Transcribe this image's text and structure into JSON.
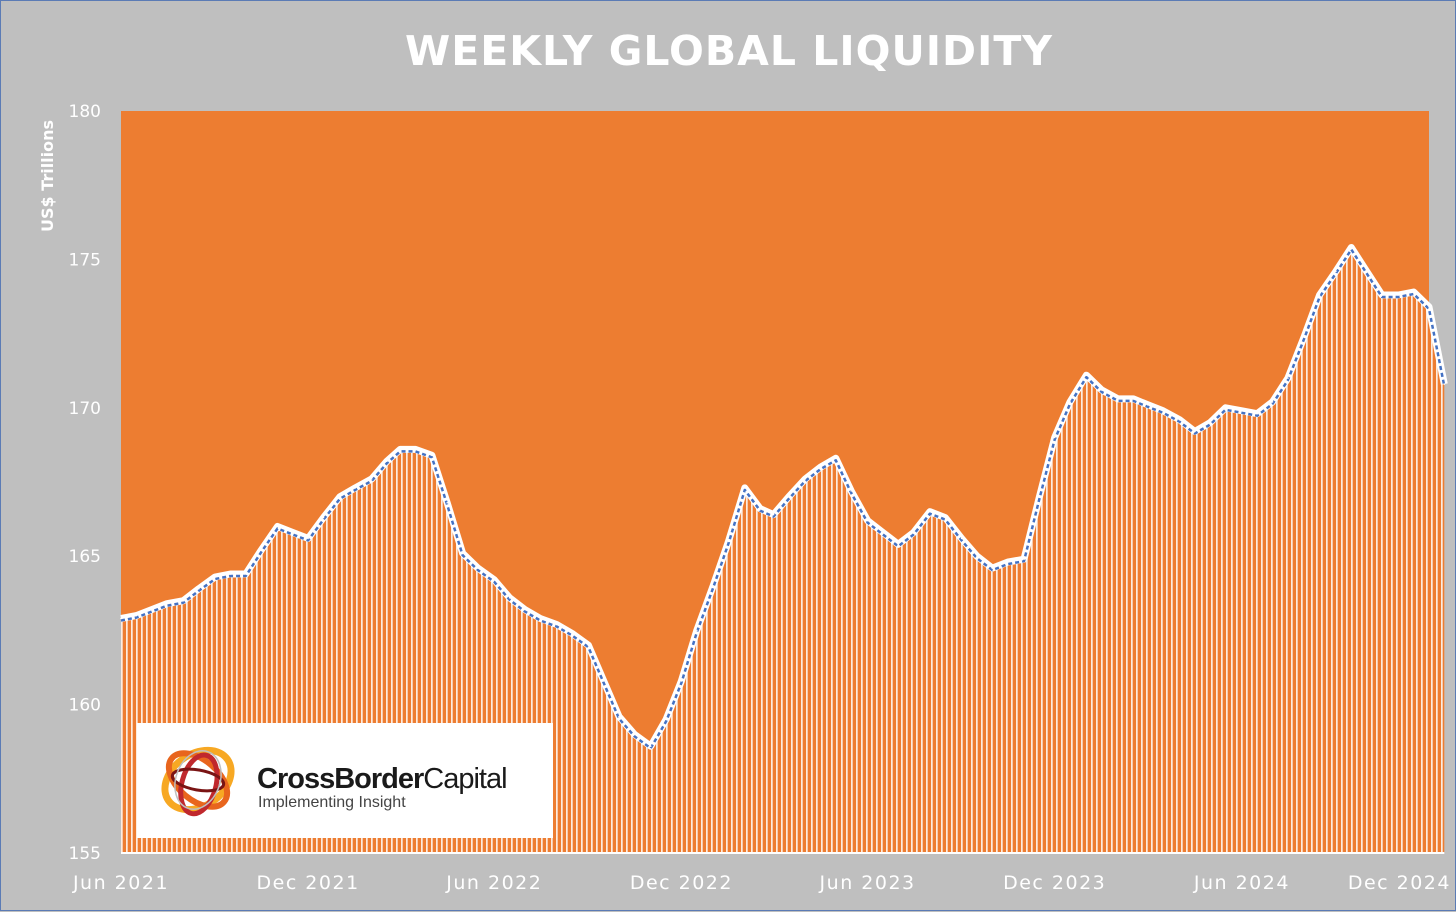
{
  "colors": {
    "background": "#bfbfbf",
    "plot_fill": "#ed7d31",
    "line_white": "#ffffff",
    "line_blue": "#4472c4",
    "text": "#ffffff"
  },
  "logo": {
    "name_bold": "CrossBorder",
    "name_regular": "Capital",
    "tagline": "Implementing Insight"
  },
  "chart_data": {
    "type": "area",
    "title": "WEEKLY GLOBAL LIQUIDITY",
    "ylabel": "US$ Trillions",
    "xlabel": "",
    "ylim": [
      155,
      180
    ],
    "yticks": [
      "155",
      "160",
      "165",
      "170",
      "175",
      "180"
    ],
    "xlim": [
      "2021-06",
      "2024-12"
    ],
    "xticks": [
      {
        "label": "Jun 2021",
        "value": "2021-06"
      },
      {
        "label": "Dec 2021",
        "value": "2021-12"
      },
      {
        "label": "Jun 2022",
        "value": "2022-06"
      },
      {
        "label": "Dec 2022",
        "value": "2022-12"
      },
      {
        "label": "Jun 2023",
        "value": "2023-06"
      },
      {
        "label": "Dec 2023",
        "value": "2023-12"
      },
      {
        "label": "Jun 2024",
        "value": "2024-06"
      },
      {
        "label": "Dec 2024",
        "value": "2024-12"
      }
    ],
    "grid": false,
    "legend": "none",
    "x": [
      "2021-06-01",
      "2021-06-16",
      "2021-07-01",
      "2021-07-16",
      "2021-08-01",
      "2021-08-16",
      "2021-09-01",
      "2021-09-16",
      "2021-10-01",
      "2021-10-16",
      "2021-11-01",
      "2021-11-16",
      "2021-12-01",
      "2021-12-16",
      "2022-01-01",
      "2022-01-16",
      "2022-02-01",
      "2022-02-16",
      "2022-03-01",
      "2022-03-16",
      "2022-04-01",
      "2022-04-16",
      "2022-05-01",
      "2022-05-16",
      "2022-06-01",
      "2022-06-16",
      "2022-07-01",
      "2022-07-16",
      "2022-08-01",
      "2022-08-16",
      "2022-09-01",
      "2022-09-16",
      "2022-10-01",
      "2022-10-16",
      "2022-11-01",
      "2022-11-16",
      "2022-12-01",
      "2022-12-16",
      "2023-01-01",
      "2023-01-16",
      "2023-02-01",
      "2023-02-16",
      "2023-03-01",
      "2023-03-16",
      "2023-04-01",
      "2023-04-16",
      "2023-05-01",
      "2023-05-16",
      "2023-06-01",
      "2023-06-16",
      "2023-07-01",
      "2023-07-16",
      "2023-08-01",
      "2023-08-16",
      "2023-09-01",
      "2023-09-16",
      "2023-10-01",
      "2023-10-16",
      "2023-11-01",
      "2023-11-16",
      "2023-12-01",
      "2023-12-16",
      "2024-01-01",
      "2024-01-16",
      "2024-02-01",
      "2024-02-16",
      "2024-03-01",
      "2024-03-16",
      "2024-04-01",
      "2024-04-16",
      "2024-05-01",
      "2024-05-16",
      "2024-06-01",
      "2024-06-16",
      "2024-07-01",
      "2024-07-16",
      "2024-08-01",
      "2024-08-16",
      "2024-09-01",
      "2024-09-16",
      "2024-10-01",
      "2024-10-16",
      "2024-11-01",
      "2024-11-16",
      "2024-12-01",
      "2024-12-16"
    ],
    "series": [
      {
        "values": [
          162.9,
          163.0,
          163.2,
          163.4,
          163.5,
          163.9,
          164.3,
          164.4,
          164.4,
          165.2,
          166.0,
          165.8,
          165.6,
          166.3,
          167.0,
          167.3,
          167.6,
          168.2,
          168.6,
          168.6,
          168.4,
          166.8,
          165.1,
          164.6,
          164.2,
          163.6,
          163.2,
          162.9,
          162.7,
          162.4,
          162.0,
          160.8,
          159.6,
          159.0,
          158.6,
          159.5,
          160.8,
          162.5,
          164.0,
          165.5,
          167.3,
          166.6,
          166.4,
          167.0,
          167.6,
          168.0,
          168.3,
          167.2,
          166.2,
          165.8,
          165.4,
          165.8,
          166.5,
          166.3,
          165.6,
          165.0,
          164.6,
          164.8,
          164.9,
          167.0,
          169.0,
          170.2,
          171.1,
          170.6,
          170.3,
          170.3,
          170.1,
          169.9,
          169.6,
          169.2,
          169.5,
          170.0,
          169.9,
          169.8,
          170.2,
          171.0,
          172.4,
          173.8,
          174.6,
          175.4,
          174.6,
          173.8,
          173.8,
          173.9,
          173.4,
          170.8
        ]
      }
    ]
  }
}
